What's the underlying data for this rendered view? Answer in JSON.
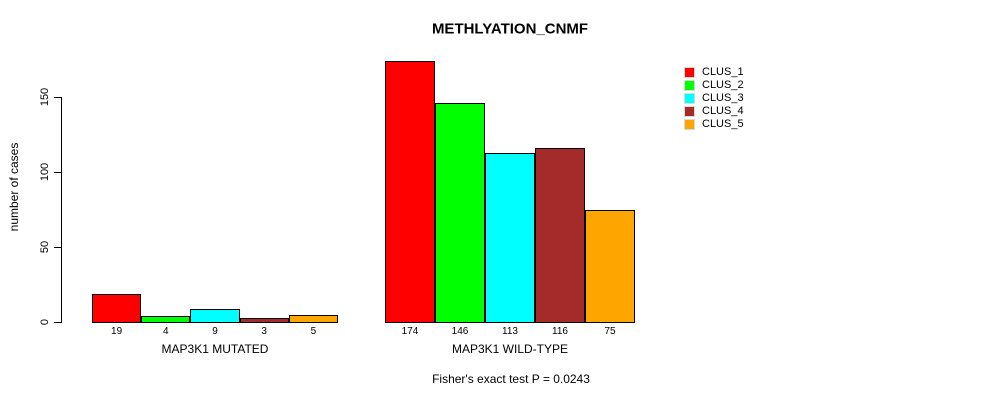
{
  "chart_data": {
    "type": "bar",
    "title": "METHLYATION_CNMF",
    "ylabel": "number of cases",
    "xlabel": "",
    "yticks": [
      0,
      50,
      100,
      150
    ],
    "ylim": [
      0,
      180
    ],
    "grid": false,
    "legend_position": "right",
    "clusters": [
      "CLUS_1",
      "CLUS_2",
      "CLUS_3",
      "CLUS_4",
      "CLUS_5"
    ],
    "colors": [
      "#ff0000",
      "#00ff00",
      "#00ffff",
      "#a52a2a",
      "#ffa500"
    ],
    "groups": [
      {
        "label": "MAP3K1 MUTATED",
        "values": [
          19,
          4,
          9,
          3,
          5
        ]
      },
      {
        "label": "MAP3K1 WILD-TYPE",
        "values": [
          174,
          146,
          113,
          116,
          75
        ]
      }
    ],
    "annotation": "Fisher's exact test P = 0.0243"
  }
}
